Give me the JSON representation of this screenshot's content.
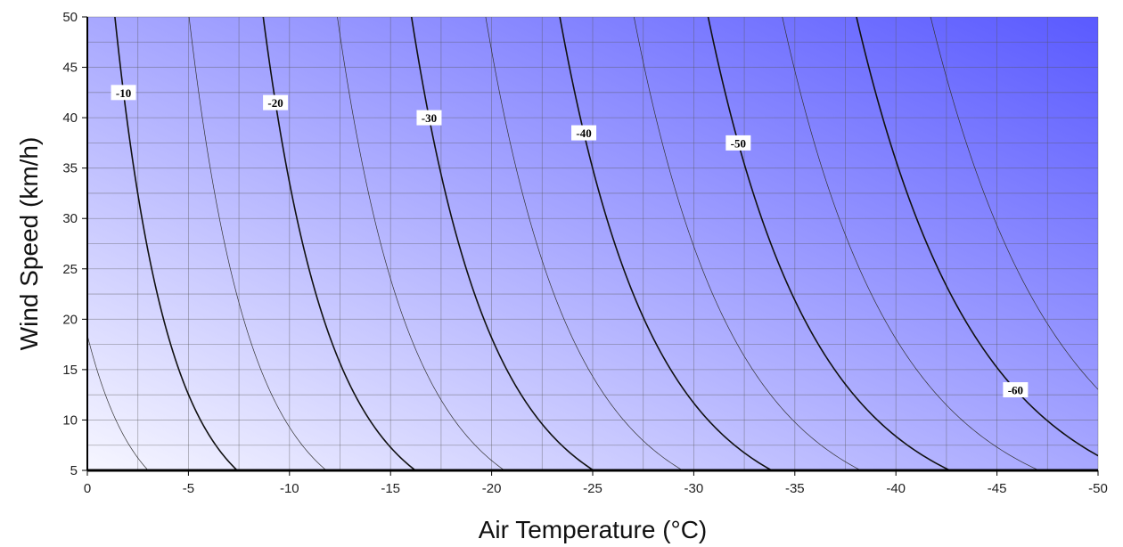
{
  "chart_data": {
    "type": "contour",
    "xlabel": "Air Temperature (°C)",
    "ylabel": "Wind Speed (km/h)",
    "xlim": [
      0,
      -50
    ],
    "ylim": [
      5,
      50
    ],
    "x_ticks": [
      "0",
      "-5",
      "-10",
      "-15",
      "-20",
      "-25",
      "-30",
      "-35",
      "-40",
      "-45",
      "-50"
    ],
    "y_ticks": [
      "5",
      "10",
      "15",
      "20",
      "25",
      "30",
      "35",
      "40",
      "45",
      "50"
    ],
    "grid": true,
    "contour_levels_major": [
      -10,
      -20,
      -30,
      -40,
      -50,
      -60
    ],
    "contour_levels_minor": [
      -5,
      -15,
      -25,
      -35,
      -45,
      -55,
      -65
    ],
    "contour_labels": [
      "-10",
      "-20",
      "-30",
      "-40",
      "-50",
      "-60"
    ],
    "colors": {
      "gradient_light": "#f6f6ff",
      "gradient_dark": "#5a5aff",
      "major_line": "#111111",
      "minor_line": "#333333"
    }
  }
}
